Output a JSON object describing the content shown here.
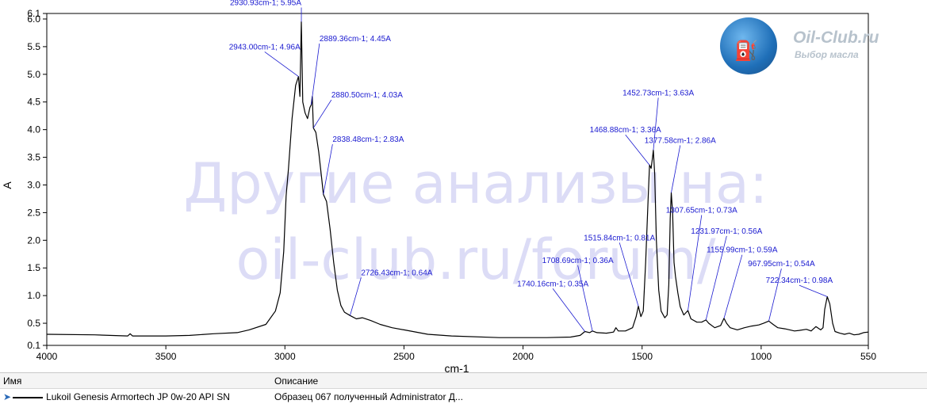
{
  "chart_data": {
    "type": "line",
    "xlabel": "cm-1",
    "ylabel": "A",
    "xlim": [
      4000,
      550
    ],
    "ylim": [
      0.1,
      6.1
    ],
    "x_ticks": [
      4000,
      3500,
      3000,
      2500,
      2000,
      1500,
      1000,
      550
    ],
    "x_tick_labels": [
      "4000",
      "3500",
      "3000",
      "2500",
      "2000",
      "1500",
      "1000",
      "550"
    ],
    "y_ticks": [
      0.1,
      0.5,
      1.0,
      1.5,
      2.0,
      2.5,
      3.0,
      3.5,
      4.0,
      4.5,
      5.0,
      5.5,
      6.0,
      6.1
    ],
    "y_tick_labels": [
      "0.1",
      "0.5",
      "1.0",
      "1.5",
      "2.0",
      "2.5",
      "3.0",
      "3.5",
      "4.0",
      "4.5",
      "5.0",
      "5.5",
      "6.0",
      "6.1"
    ],
    "grid": false,
    "series": [
      {
        "name": "Lukoil Genesis Armortech JP 0w-20 API SN",
        "color": "#000000",
        "points": [
          [
            4000,
            0.3
          ],
          [
            3800,
            0.29
          ],
          [
            3660,
            0.27
          ],
          [
            3650,
            0.31
          ],
          [
            3640,
            0.27
          ],
          [
            3500,
            0.27
          ],
          [
            3400,
            0.28
          ],
          [
            3300,
            0.31
          ],
          [
            3200,
            0.33
          ],
          [
            3150,
            0.38
          ],
          [
            3080,
            0.48
          ],
          [
            3040,
            0.72
          ],
          [
            3020,
            1.05
          ],
          [
            3005,
            1.8
          ],
          [
            2995,
            2.8
          ],
          [
            2985,
            3.3
          ],
          [
            2970,
            4.2
          ],
          [
            2955,
            4.8
          ],
          [
            2943,
            4.96
          ],
          [
            2937,
            4.6
          ],
          [
            2930.93,
            5.95
          ],
          [
            2925,
            4.5
          ],
          [
            2915,
            4.3
          ],
          [
            2905,
            4.2
          ],
          [
            2895,
            4.4
          ],
          [
            2889.36,
            4.45
          ],
          [
            2885,
            4.6
          ],
          [
            2880.5,
            4.03
          ],
          [
            2870,
            3.95
          ],
          [
            2858,
            3.6
          ],
          [
            2845,
            3.1
          ],
          [
            2838.48,
            2.83
          ],
          [
            2825,
            2.7
          ],
          [
            2810,
            2.2
          ],
          [
            2795,
            1.6
          ],
          [
            2780,
            1.1
          ],
          [
            2765,
            0.82
          ],
          [
            2750,
            0.7
          ],
          [
            2726.43,
            0.64
          ],
          [
            2700,
            0.58
          ],
          [
            2675,
            0.6
          ],
          [
            2640,
            0.55
          ],
          [
            2600,
            0.48
          ],
          [
            2550,
            0.42
          ],
          [
            2500,
            0.38
          ],
          [
            2400,
            0.3
          ],
          [
            2300,
            0.27
          ],
          [
            2100,
            0.24
          ],
          [
            1900,
            0.24
          ],
          [
            1800,
            0.25
          ],
          [
            1760,
            0.28
          ],
          [
            1740.16,
            0.35
          ],
          [
            1720,
            0.33
          ],
          [
            1708.69,
            0.36
          ],
          [
            1690,
            0.33
          ],
          [
            1650,
            0.32
          ],
          [
            1620,
            0.34
          ],
          [
            1610,
            0.42
          ],
          [
            1600,
            0.36
          ],
          [
            1570,
            0.36
          ],
          [
            1540,
            0.42
          ],
          [
            1525,
            0.62
          ],
          [
            1515.84,
            0.81
          ],
          [
            1505,
            0.62
          ],
          [
            1495,
            0.72
          ],
          [
            1485,
            1.6
          ],
          [
            1475,
            2.7
          ],
          [
            1468.88,
            3.36
          ],
          [
            1462,
            3.3
          ],
          [
            1456,
            3.5
          ],
          [
            1452.73,
            3.63
          ],
          [
            1447,
            3.2
          ],
          [
            1440,
            2.0
          ],
          [
            1430,
            1.1
          ],
          [
            1420,
            0.72
          ],
          [
            1405,
            0.6
          ],
          [
            1395,
            0.65
          ],
          [
            1388,
            1.2
          ],
          [
            1382,
            2.4
          ],
          [
            1377.58,
            2.86
          ],
          [
            1372,
            2.5
          ],
          [
            1366,
            1.6
          ],
          [
            1360,
            1.35
          ],
          [
            1350,
            1.05
          ],
          [
            1340,
            0.8
          ],
          [
            1325,
            0.65
          ],
          [
            1307.65,
            0.73
          ],
          [
            1295,
            0.58
          ],
          [
            1270,
            0.52
          ],
          [
            1250,
            0.52
          ],
          [
            1231.97,
            0.56
          ],
          [
            1220,
            0.5
          ],
          [
            1195,
            0.42
          ],
          [
            1170,
            0.46
          ],
          [
            1155.99,
            0.59
          ],
          [
            1145,
            0.5
          ],
          [
            1130,
            0.42
          ],
          [
            1100,
            0.38
          ],
          [
            1070,
            0.42
          ],
          [
            1040,
            0.45
          ],
          [
            1010,
            0.47
          ],
          [
            990,
            0.5
          ],
          [
            967.95,
            0.54
          ],
          [
            950,
            0.48
          ],
          [
            930,
            0.42
          ],
          [
            900,
            0.4
          ],
          [
            880,
            0.38
          ],
          [
            860,
            0.36
          ],
          [
            840,
            0.37
          ],
          [
            810,
            0.39
          ],
          [
            790,
            0.36
          ],
          [
            770,
            0.44
          ],
          [
            750,
            0.38
          ],
          [
            740,
            0.42
          ],
          [
            733,
            0.75
          ],
          [
            722.34,
            0.98
          ],
          [
            712,
            0.85
          ],
          [
            700,
            0.5
          ],
          [
            690,
            0.35
          ],
          [
            670,
            0.32
          ],
          [
            650,
            0.3
          ],
          [
            630,
            0.32
          ],
          [
            610,
            0.29
          ],
          [
            590,
            0.3
          ],
          [
            570,
            0.33
          ],
          [
            550,
            0.34
          ]
        ]
      }
    ],
    "annotations": [
      {
        "x": 2930.93,
        "y": 5.95,
        "label": "2930.93cm-1; 5.95A",
        "tx": 2930.93,
        "ty": 6.25,
        "anchor": "end"
      },
      {
        "x": 2943.0,
        "y": 4.96,
        "label": "2943.00cm-1; 4.96A",
        "tx": 3085,
        "ty": 5.45,
        "anchor": "middle"
      },
      {
        "x": 2889.36,
        "y": 4.45,
        "label": "2889.36cm-1; 4.45A",
        "tx": 2855,
        "ty": 5.6,
        "anchor": "start"
      },
      {
        "x": 2880.5,
        "y": 4.03,
        "label": "2880.50cm-1; 4.03A",
        "tx": 2805,
        "ty": 4.58,
        "anchor": "start"
      },
      {
        "x": 2838.48,
        "y": 2.83,
        "label": "2838.48cm-1; 2.83A",
        "tx": 2800,
        "ty": 3.78,
        "anchor": "start"
      },
      {
        "x": 2726.43,
        "y": 0.64,
        "label": "2726.43cm-1; 0.64A",
        "tx": 2680,
        "ty": 1.37,
        "anchor": "start"
      },
      {
        "x": 1740.16,
        "y": 0.35,
        "label": "1740.16cm-1; 0.35A",
        "tx": 1875,
        "ty": 1.17,
        "anchor": "middle"
      },
      {
        "x": 1708.69,
        "y": 0.36,
        "label": "1708.69cm-1; 0.36A",
        "tx": 1770,
        "ty": 1.59,
        "anchor": "middle"
      },
      {
        "x": 1515.84,
        "y": 0.81,
        "label": "1515.84cm-1; 0.81A",
        "tx": 1595,
        "ty": 2.0,
        "anchor": "middle"
      },
      {
        "x": 1468.88,
        "y": 3.36,
        "label": "1468.88cm-1; 3.36A",
        "tx": 1570,
        "ty": 3.95,
        "anchor": "middle"
      },
      {
        "x": 1452.73,
        "y": 3.63,
        "label": "1452.73cm-1; 3.63A",
        "tx": 1432,
        "ty": 4.62,
        "anchor": "middle"
      },
      {
        "x": 1377.58,
        "y": 2.86,
        "label": "1377.58cm-1; 2.86A",
        "tx": 1340,
        "ty": 3.76,
        "anchor": "middle"
      },
      {
        "x": 1307.65,
        "y": 0.73,
        "label": "1307.65cm-1; 0.73A",
        "tx": 1250,
        "ty": 2.5,
        "anchor": "middle"
      },
      {
        "x": 1231.97,
        "y": 0.56,
        "label": "1231.97cm-1; 0.56A",
        "tx": 1145,
        "ty": 2.12,
        "anchor": "middle"
      },
      {
        "x": 1155.99,
        "y": 0.59,
        "label": "1155.99cm-1; 0.59A",
        "tx": 1080,
        "ty": 1.78,
        "anchor": "middle"
      },
      {
        "x": 967.95,
        "y": 0.54,
        "label": "967.95cm-1; 0.54A",
        "tx": 915,
        "ty": 1.53,
        "anchor": "middle"
      },
      {
        "x": 722.34,
        "y": 0.98,
        "label": "722.34cm-1; 0.98A",
        "tx": 840,
        "ty": 1.23,
        "anchor": "middle"
      }
    ]
  },
  "watermark": {
    "line1": "Другие анализы на:",
    "line2": "oil-club.ru/forum/"
  },
  "logo": {
    "title": "Oil-Club.ru",
    "subtitle": "Выбор масла",
    "icon": "oil-can-icon"
  },
  "legend": {
    "col_name": "Имя",
    "col_desc": "Описание",
    "row_name": "Lukoil Genesis Armortech JP 0w-20 API SN",
    "row_desc": "Образец 067 полученный Administrator Д..."
  }
}
